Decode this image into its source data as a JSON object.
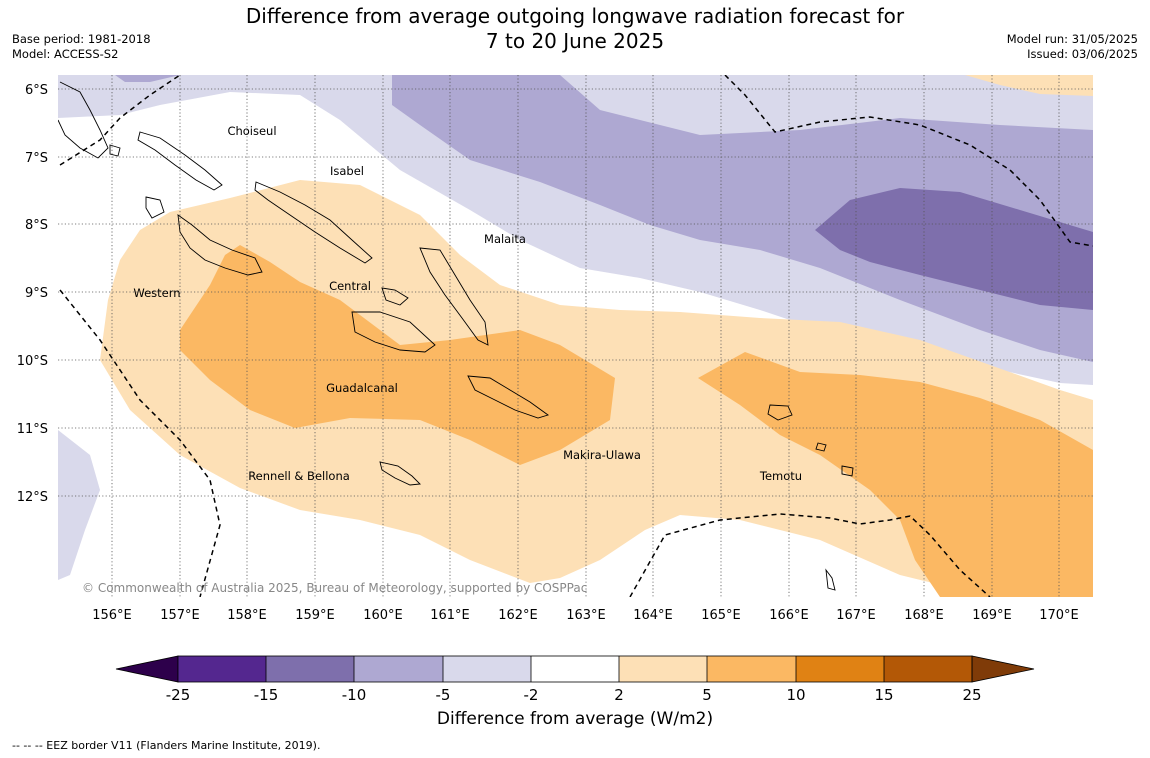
{
  "header": {
    "title_line1": "Difference from average outgoing longwave radiation forecast for",
    "title_line2": "7 to 20 June 2025",
    "base_period": "Base period: 1981-2018",
    "model": "Model: ACCESS-S2",
    "model_run": "Model run: 31/05/2025",
    "issued": "Issued: 03/06/2025"
  },
  "map": {
    "lat_labels": [
      "6°S",
      "7°S",
      "8°S",
      "9°S",
      "10°S",
      "11°S",
      "12°S"
    ],
    "lon_labels": [
      "156°E",
      "157°E",
      "158°E",
      "159°E",
      "160°E",
      "161°E",
      "162°E",
      "163°E",
      "164°E",
      "165°E",
      "166°E",
      "167°E",
      "168°E",
      "169°E",
      "170°E"
    ],
    "places": {
      "choiseul": "Choiseul",
      "isabel": "Isabel",
      "malaita": "Malaita",
      "central": "Central",
      "western": "Western",
      "guadalcanal": "Guadalcanal",
      "makira_ulawa": "Makira-Ulawa",
      "temotu": "Temotu",
      "rennell_bellona": "Rennell & Bellona"
    },
    "copyright": "© Commonwealth of Australia 2025, Bureau of Meteorology, supported by COSPPac"
  },
  "colorbar": {
    "labels": [
      "-25",
      "-15",
      "-10",
      "-5",
      "-2",
      "2",
      "5",
      "10",
      "15",
      "25"
    ],
    "colors": [
      "#54278f",
      "#7e6fac",
      "#aea8d2",
      "#d9d9eb",
      "#ffffff",
      "#fde0b6",
      "#fbb863",
      "#e08214",
      "#b35806"
    ],
    "low_extend_color": "#2d004b",
    "high_extend_color": "#7f3b08",
    "title": "Difference from average (W/m2)"
  },
  "footer": {
    "eez_note": "--  --  -- EEZ border V11 (Flanders Marine Institute, 2019)."
  }
}
